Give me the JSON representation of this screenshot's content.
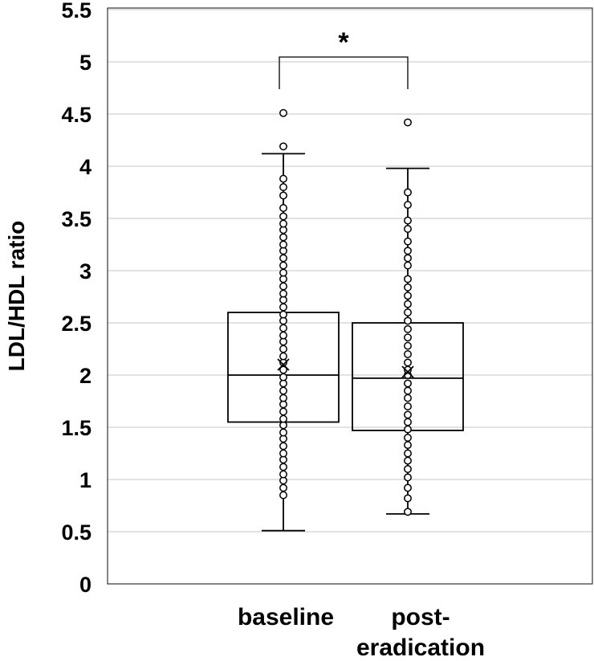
{
  "chart_data": {
    "type": "box",
    "ylabel": "LDL/HDL ratio",
    "xlabel": "",
    "ylim": [
      0,
      5.5
    ],
    "yticks": [
      "0",
      "0.5",
      "1",
      "1.5",
      "2",
      "2.5",
      "3",
      "3.5",
      "4",
      "4.5",
      "5",
      "5.5"
    ],
    "grid": true,
    "categories": [
      {
        "lines": [
          "baseline"
        ]
      },
      {
        "lines": [
          "post-",
          "eradication"
        ]
      }
    ],
    "boxes": [
      {
        "whisker_low": 0.51,
        "q1": 1.55,
        "median": 2.0,
        "q3": 2.6,
        "whisker_high": 4.12,
        "mean": 2.1,
        "points": [
          0.85,
          0.92,
          0.99,
          1.05,
          1.12,
          1.19,
          1.25,
          1.32,
          1.39,
          1.45,
          1.52,
          1.58,
          1.65,
          1.72,
          1.78,
          1.85,
          1.92,
          1.98,
          2.05,
          2.12,
          2.18,
          2.25,
          2.32,
          2.38,
          2.45,
          2.52,
          2.58,
          2.65,
          2.72,
          2.78,
          2.85,
          2.92,
          2.98,
          3.05,
          3.12,
          3.19,
          3.25,
          3.32,
          3.39,
          3.45,
          3.52,
          3.6,
          3.72,
          3.8,
          3.88,
          4.19,
          4.51
        ]
      },
      {
        "whisker_low": 0.67,
        "q1": 1.47,
        "median": 1.97,
        "q3": 2.5,
        "whisker_high": 3.98,
        "mean": 2.03,
        "points": [
          0.69,
          0.82,
          0.92,
          1.02,
          1.1,
          1.18,
          1.25,
          1.33,
          1.4,
          1.48,
          1.55,
          1.62,
          1.7,
          1.78,
          1.85,
          1.92,
          2.0,
          2.05,
          2.12,
          2.2,
          2.28,
          2.36,
          2.44,
          2.52,
          2.6,
          2.68,
          2.76,
          2.84,
          2.92,
          3.05,
          3.12,
          3.19,
          3.28,
          3.4,
          3.48,
          3.63,
          3.75,
          4.42
        ]
      }
    ],
    "significance": {
      "label": "*",
      "between": [
        0,
        1
      ]
    }
  }
}
